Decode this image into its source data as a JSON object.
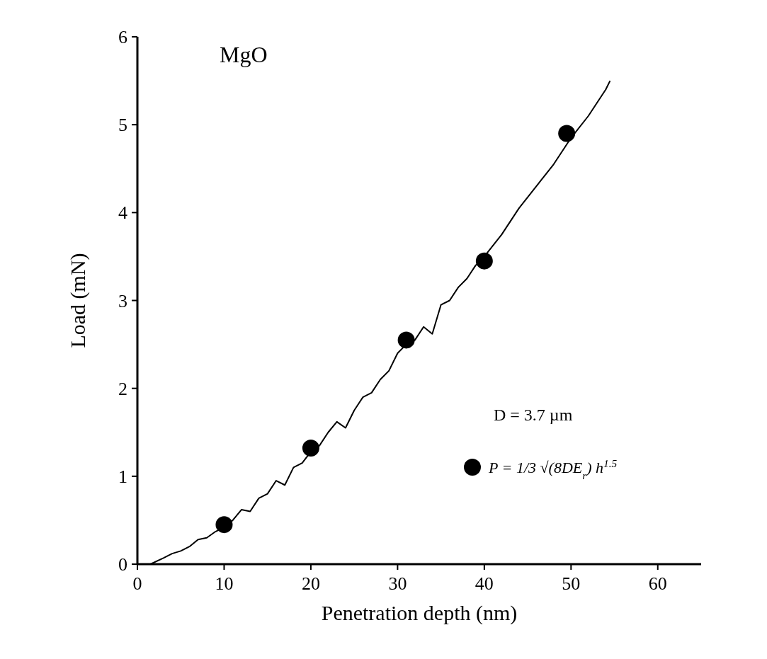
{
  "chart_data": {
    "type": "line",
    "xlabel": "Penetration depth (nm)",
    "ylabel": "Load (mN)",
    "xlim": [
      0,
      65
    ],
    "ylim": [
      0,
      6
    ],
    "xticks": [
      0,
      10,
      20,
      30,
      40,
      50,
      60
    ],
    "yticks": [
      0,
      1,
      2,
      3,
      4,
      5,
      6
    ],
    "annotations": [
      "MgO",
      "D = 3.7 µm"
    ],
    "legend": "right",
    "grid": false,
    "series": [
      {
        "color": "#000000",
        "marker": "none",
        "x": [
          1.5,
          3,
          4,
          5,
          6,
          7,
          8,
          9,
          10,
          11,
          12,
          13,
          14,
          15,
          16,
          17,
          18,
          19,
          20,
          21,
          22,
          23,
          24,
          25,
          26,
          27,
          28,
          29,
          30,
          31,
          32,
          33,
          34,
          35,
          36,
          37,
          38,
          39,
          40,
          42,
          44,
          46,
          48,
          50,
          52,
          54,
          54.5
        ],
        "values": [
          0,
          0.07,
          0.12,
          0.15,
          0.2,
          0.28,
          0.3,
          0.37,
          0.42,
          0.5,
          0.62,
          0.6,
          0.75,
          0.8,
          0.95,
          0.9,
          1.1,
          1.15,
          1.28,
          1.35,
          1.5,
          1.62,
          1.55,
          1.75,
          1.9,
          1.95,
          2.1,
          2.2,
          2.4,
          2.5,
          2.55,
          2.7,
          2.62,
          2.95,
          3.0,
          3.15,
          3.25,
          3.4,
          3.5,
          3.75,
          4.05,
          4.3,
          4.55,
          4.85,
          5.1,
          5.4,
          5.5
        ]
      },
      {
        "type": "scatter",
        "name": "P = 1/3 √(8DE$_{r}$) h$^{1.5}$",
        "color": "#000000",
        "marker": "circle",
        "x": [
          10,
          20,
          31,
          40,
          49.5
        ],
        "values": [
          0.45,
          1.32,
          2.55,
          3.45,
          4.9
        ]
      }
    ]
  }
}
